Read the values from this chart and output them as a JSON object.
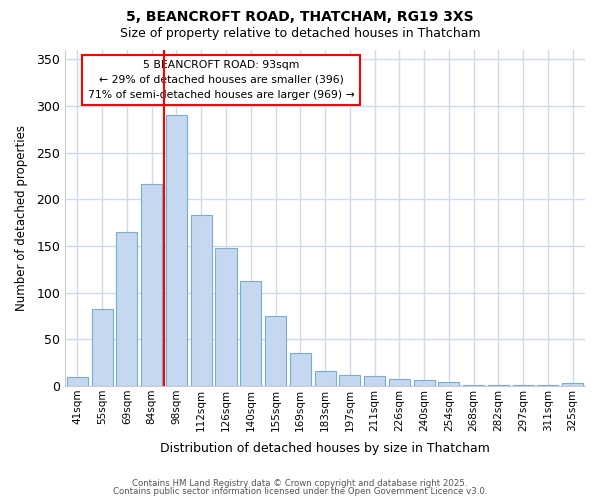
{
  "title_line1": "5, BEANCROFT ROAD, THATCHAM, RG19 3XS",
  "title_line2": "Size of property relative to detached houses in Thatcham",
  "xlabel": "Distribution of detached houses by size in Thatcham",
  "ylabel": "Number of detached properties",
  "categories": [
    "41sqm",
    "55sqm",
    "69sqm",
    "84sqm",
    "98sqm",
    "112sqm",
    "126sqm",
    "140sqm",
    "155sqm",
    "169sqm",
    "183sqm",
    "197sqm",
    "211sqm",
    "226sqm",
    "240sqm",
    "254sqm",
    "268sqm",
    "282sqm",
    "297sqm",
    "311sqm",
    "325sqm"
  ],
  "values": [
    10,
    83,
    165,
    216,
    290,
    183,
    148,
    113,
    75,
    35,
    16,
    12,
    11,
    8,
    6,
    4,
    1,
    1,
    1,
    1,
    3
  ],
  "bar_color": "#c5d8f0",
  "bar_edge_color": "#7aadd4",
  "red_line_index": 4,
  "red_line_label": "5 BEANCROFT ROAD: 93sqm",
  "annotation_line2": "← 29% of detached houses are smaller (396)",
  "annotation_line3": "71% of semi-detached houses are larger (969) →",
  "ylim": [
    0,
    360
  ],
  "yticks": [
    0,
    50,
    100,
    150,
    200,
    250,
    300,
    350
  ],
  "background_color": "#ffffff",
  "grid_color": "#d0daea",
  "footer_line1": "Contains HM Land Registry data © Crown copyright and database right 2025.",
  "footer_line2": "Contains public sector information licensed under the Open Government Licence v3.0."
}
